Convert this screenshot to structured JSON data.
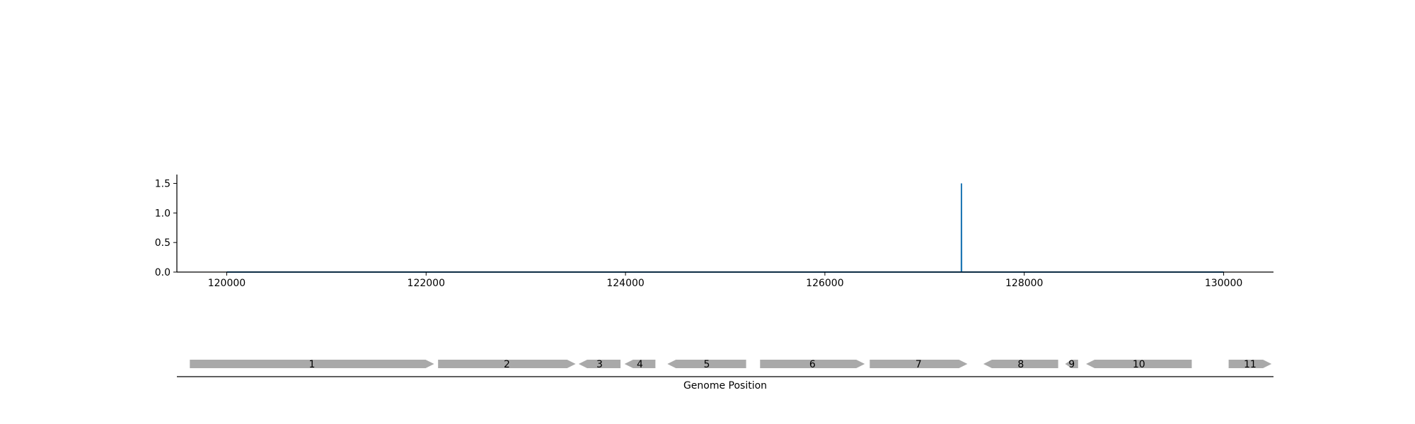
{
  "chart_data": [
    {
      "type": "line",
      "title": "",
      "xlabel": "",
      "ylabel": "",
      "xlim": [
        119500,
        130500
      ],
      "ylim": [
        0,
        1.65
      ],
      "xticks": [
        120000,
        122000,
        124000,
        126000,
        128000,
        130000
      ],
      "xtick_labels": [
        "120000",
        "122000",
        "124000",
        "126000",
        "128000",
        "130000"
      ],
      "yticks": [
        0.0,
        0.5,
        1.0,
        1.5
      ],
      "ytick_labels": [
        "0.0",
        "0.5",
        "1.0",
        "1.5"
      ],
      "grid": false,
      "series": [
        {
          "color": "#1f77b4",
          "x": [
            120000,
            127369,
            127370,
            127371,
            130000
          ],
          "y": [
            0,
            0,
            1.5,
            0,
            0
          ]
        }
      ]
    },
    {
      "type": "gene-track",
      "xlabel": "Genome Position",
      "xlim": [
        119500,
        130500
      ],
      "feature_color": "#a9a9a9",
      "features": [
        {
          "label": "1",
          "start": 119630,
          "end": 122080,
          "strand": 1
        },
        {
          "label": "2",
          "start": 122120,
          "end": 123500,
          "strand": 1
        },
        {
          "label": "3",
          "start": 123530,
          "end": 123950,
          "strand": -1
        },
        {
          "label": "4",
          "start": 123990,
          "end": 124300,
          "strand": -1
        },
        {
          "label": "5",
          "start": 124420,
          "end": 125210,
          "strand": -1
        },
        {
          "label": "6",
          "start": 125350,
          "end": 126400,
          "strand": 1
        },
        {
          "label": "7",
          "start": 126450,
          "end": 127430,
          "strand": 1
        },
        {
          "label": "8",
          "start": 127590,
          "end": 128340,
          "strand": -1
        },
        {
          "label": "9",
          "start": 128410,
          "end": 128540,
          "strand": -1
        },
        {
          "label": "10",
          "start": 128620,
          "end": 129680,
          "strand": -1
        },
        {
          "label": "11",
          "start": 130050,
          "end": 130480,
          "strand": 1
        }
      ]
    }
  ]
}
